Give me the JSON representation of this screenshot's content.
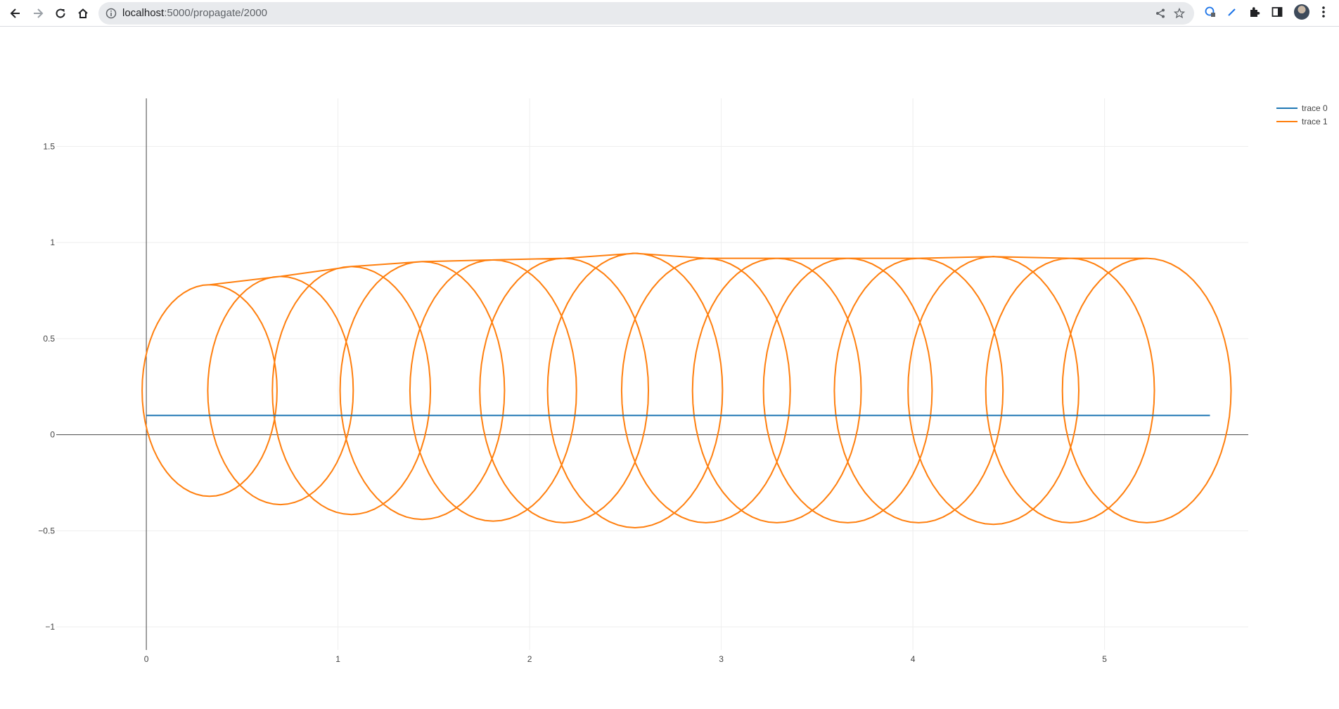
{
  "browser": {
    "url_host": "localhost",
    "url_path": ":5000/propagate/2000",
    "icons": [
      "back-icon",
      "forward-icon",
      "reload-icon",
      "home-icon",
      "info-icon",
      "share-icon",
      "star-icon",
      "extension-puzzle-icon",
      "side-panel-icon",
      "profile-avatar",
      "kebab-menu-icon"
    ]
  },
  "colors": {
    "trace0": "#1f77b4",
    "trace1": "#ff7f0e",
    "grid": "#eeeeee",
    "zeroline": "#444444",
    "tick_text": "#444444"
  },
  "chart_data": {
    "type": "line",
    "xlim": [
      -0.47,
      5.75
    ],
    "ylim": [
      -1.12,
      1.75
    ],
    "x_ticks": [
      0,
      1,
      2,
      3,
      4,
      5
    ],
    "y_ticks": [
      1.5,
      1,
      0.5,
      0,
      -0.5,
      -1
    ],
    "y_tick_labels": [
      "1.5",
      "1",
      "0.5",
      "0",
      "−0.5",
      "−1"
    ],
    "grid": true,
    "legend_position": "top-right",
    "series": [
      {
        "name": "trace 0",
        "x": [
          0,
          5.55
        ],
        "y": [
          0.1,
          0.1
        ]
      },
      {
        "name": "trace 1",
        "description_points": "cycloid-like loops",
        "loops": [
          {
            "cx": 0.33,
            "cy": 0.23,
            "r": 0.64
          },
          {
            "cx": 0.7,
            "cy": 0.23,
            "r": 0.69
          },
          {
            "cx": 1.07,
            "cy": 0.23,
            "r": 0.75
          },
          {
            "cx": 1.44,
            "cy": 0.23,
            "r": 0.78
          },
          {
            "cx": 1.81,
            "cy": 0.23,
            "r": 0.79
          },
          {
            "cx": 2.18,
            "cy": 0.23,
            "r": 0.8
          },
          {
            "cx": 2.55,
            "cy": 0.23,
            "r": 0.83
          },
          {
            "cx": 2.92,
            "cy": 0.23,
            "r": 0.8
          },
          {
            "cx": 3.29,
            "cy": 0.23,
            "r": 0.8
          },
          {
            "cx": 3.66,
            "cy": 0.23,
            "r": 0.8
          },
          {
            "cx": 4.03,
            "cy": 0.23,
            "r": 0.8
          },
          {
            "cx": 4.42,
            "cy": 0.23,
            "r": 0.81
          },
          {
            "cx": 4.82,
            "cy": 0.23,
            "r": 0.8
          },
          {
            "cx": 5.22,
            "cy": 0.23,
            "r": 0.8
          }
        ]
      }
    ]
  }
}
